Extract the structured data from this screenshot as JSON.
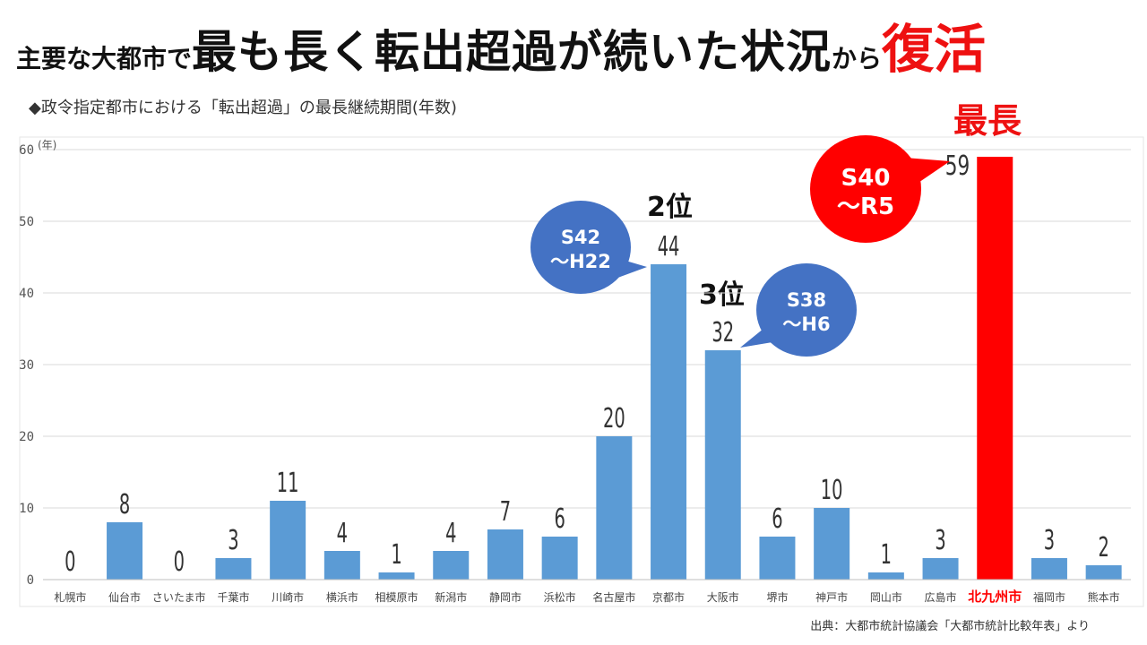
{
  "title": {
    "part1": "主要な大都市で",
    "part2": "最も長く転出超過が続いた状況",
    "part3": "から",
    "part4": "復活"
  },
  "subtitle": "◆政令指定都市における「転出超過」の最長継続期間(年数)",
  "source": "出典：大都市統計協議会「大都市統計比較年表」より",
  "highlight_label": "最長",
  "ranks": {
    "second": "2位",
    "third": "3位"
  },
  "callouts": [
    {
      "city": "北九州市",
      "line1": "S40",
      "line2": "～R5",
      "color": "#ff0000"
    },
    {
      "city": "京都市",
      "line1": "S42",
      "line2": "～H22",
      "color": "#4472c4"
    },
    {
      "city": "大阪市",
      "line1": "S38",
      "line2": "～H6",
      "color": "#4472c4"
    }
  ],
  "colors": {
    "bar": "#5b9bd5",
    "highlight": "#ff0000",
    "bubble_blue": "#4472c4",
    "grid": "#d9d9d9"
  },
  "chart_data": {
    "type": "bar",
    "title": "政令指定都市における「転出超過」の最長継続期間(年数)",
    "ylabel": "(年)",
    "ylim": [
      0,
      60
    ],
    "yticks": [
      0,
      10,
      20,
      30,
      40,
      50,
      60
    ],
    "grid": true,
    "categories": [
      "札幌市",
      "仙台市",
      "さいたま市",
      "千葉市",
      "川崎市",
      "横浜市",
      "相模原市",
      "新潟市",
      "静岡市",
      "浜松市",
      "名古屋市",
      "京都市",
      "大阪市",
      "堺市",
      "神戸市",
      "岡山市",
      "広島市",
      "北九州市",
      "福岡市",
      "熊本市"
    ],
    "values": [
      0,
      8,
      0,
      3,
      11,
      4,
      1,
      4,
      7,
      6,
      20,
      44,
      32,
      6,
      10,
      1,
      3,
      59,
      3,
      2
    ],
    "highlight": "北九州市"
  }
}
